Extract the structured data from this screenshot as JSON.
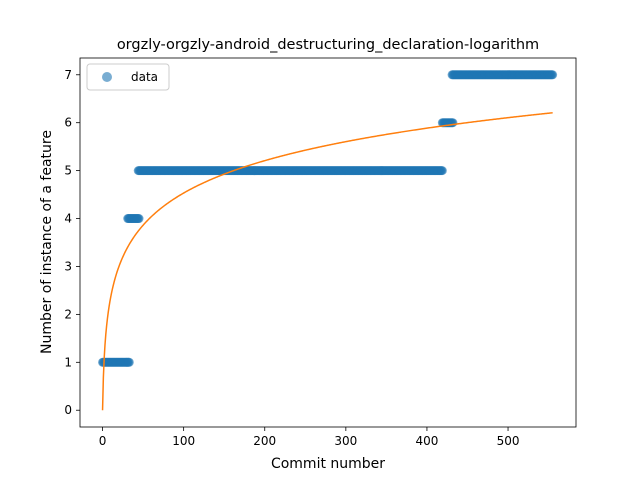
{
  "chart_data": {
    "type": "scatter",
    "title": "orgzly-orgzly-android_destructuring_declaration-logarithm",
    "xlabel": "Commit number",
    "ylabel": "Number of instance of a feature",
    "xlim": [
      -27.8,
      583.8
    ],
    "ylim": [
      -0.35,
      7.35
    ],
    "xticks": [
      0,
      100,
      200,
      300,
      400,
      500
    ],
    "yticks": [
      0,
      1,
      2,
      3,
      4,
      5,
      6,
      7
    ],
    "legend": {
      "position": "upper-left",
      "entries": [
        "data"
      ]
    },
    "grid": false,
    "series": [
      {
        "name": "data",
        "kind": "scatter",
        "color": "#1f77b4",
        "opacity": 0.6,
        "step_runs": [
          {
            "x_start": 0,
            "x_end": 33,
            "y": 1
          },
          {
            "x_start": 31,
            "x_end": 45,
            "y": 4
          },
          {
            "x_start": 44,
            "x_end": 419,
            "y": 5
          },
          {
            "x_start": 419,
            "x_end": 432,
            "y": 6
          },
          {
            "x_start": 431,
            "x_end": 555,
            "y": 7
          }
        ]
      },
      {
        "kind": "fit-line",
        "color": "#ff7f0e",
        "formula": "y = a*ln(1+x)",
        "a": 0.982,
        "x_range": [
          0,
          555
        ]
      }
    ]
  }
}
